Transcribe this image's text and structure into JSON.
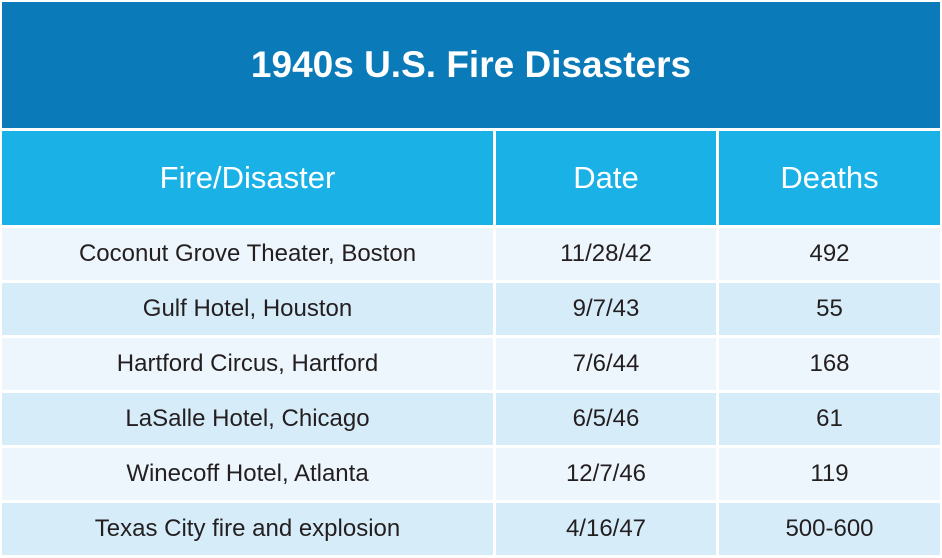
{
  "title": "1940s U.S. Fire Disasters",
  "columns": [
    "Fire/Disaster",
    "Date",
    "Deaths"
  ],
  "rows": [
    [
      "Coconut Grove Theater, Boston",
      "11/28/42",
      "492"
    ],
    [
      "Gulf Hotel, Houston",
      "9/7/43",
      "55"
    ],
    [
      "Hartford Circus, Hartford",
      "7/6/44",
      "168"
    ],
    [
      "LaSalle Hotel, Chicago",
      "6/5/46",
      "61"
    ],
    [
      "Winecoff Hotel, Atlanta",
      "12/7/46",
      "119"
    ],
    [
      "Texas City fire and explosion",
      "4/16/47",
      "500-600"
    ]
  ],
  "colors": {
    "title_bg": "#0a7ab8",
    "header_bg": "#1ab1e6",
    "row_light": "#edf6fc",
    "row_dark": "#d7ecf9",
    "text": "#231f20"
  }
}
